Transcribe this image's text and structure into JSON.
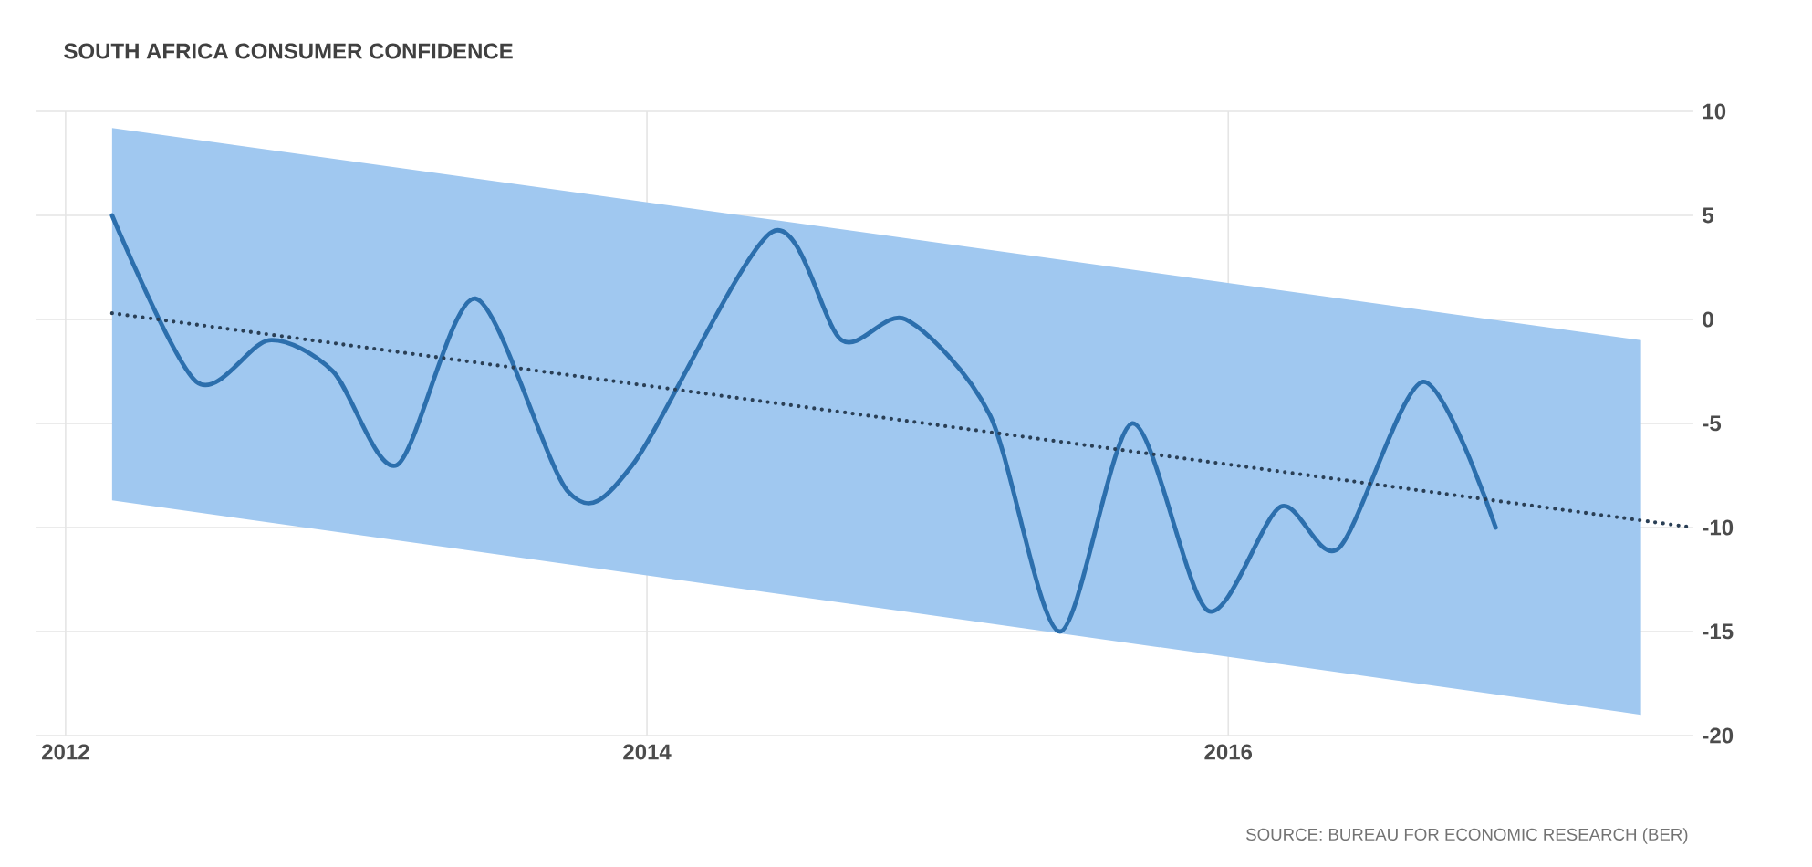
{
  "chart_data": {
    "type": "line",
    "title": "SOUTH AFRICA CONSUMER CONFIDENCE",
    "annotations": [
      "SOURCE: BUREAU FOR ECONOMIC RESEARCH (BER)"
    ],
    "xlim": [
      2011.9,
      2017.6
    ],
    "xticks": [
      2012,
      2014,
      2016
    ],
    "ylim": [
      -20,
      10
    ],
    "yticks": [
      -20,
      -15,
      -10,
      -5,
      0,
      5,
      10
    ],
    "grid": true,
    "series": [
      {
        "color": "#a0c8f0",
        "x": [
          2012.16,
          2017.42
        ],
        "values": [
          null,
          null
        ],
        "lower": [
          -8.7,
          -19
        ],
        "upper": [
          9.2,
          -1
        ]
      },
      {
        "color": "#2c6fad",
        "line_style": "solid",
        "x": [
          2012.16,
          2012.45,
          2012.7,
          2012.92,
          2013.14,
          2013.41,
          2013.73,
          2013.95,
          2014.43,
          2014.67,
          2014.89,
          2015.18,
          2015.42,
          2015.67,
          2015.93,
          2016.18,
          2016.38,
          2016.67,
          2016.92
        ],
        "values": [
          5,
          -3,
          -1,
          -2.5,
          -7,
          1,
          -8.3,
          -7,
          4.2,
          -1,
          0,
          -4.6,
          -15,
          -5,
          -14,
          -9,
          -11,
          -3,
          -10
        ]
      },
      {
        "color": "#2a3f55",
        "line_style": "dotted",
        "x": [
          2012.16,
          2017.6
        ],
        "values": [
          0.3,
          -10
        ]
      }
    ]
  }
}
